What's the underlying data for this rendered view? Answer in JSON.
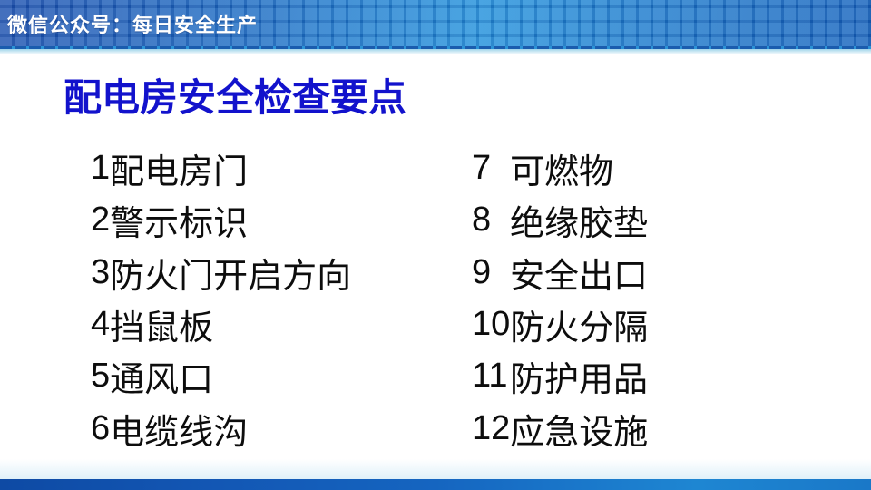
{
  "banner": {
    "text": "微信公众号：每日安全生产"
  },
  "slide": {
    "title": "配电房安全检查要点"
  },
  "checklist": {
    "left": [
      {
        "num": "1",
        "label": "配电房门"
      },
      {
        "num": "2",
        "label": "警示标识"
      },
      {
        "num": "3",
        "label": "防火门开启方向"
      },
      {
        "num": "4",
        "label": "挡鼠板"
      },
      {
        "num": "5",
        "label": "通风口"
      },
      {
        "num": "6",
        "label": "电缆线沟"
      }
    ],
    "right": [
      {
        "num": "7",
        "label": "可燃物"
      },
      {
        "num": "8",
        "label": "绝缘胶垫"
      },
      {
        "num": "9",
        "label": "安全出口"
      },
      {
        "num": "10",
        "label": "防火分隔"
      },
      {
        "num": "11",
        "label": "防护用品"
      },
      {
        "num": "12",
        "label": "应急设施"
      }
    ]
  },
  "colors": {
    "title_text": "#1212cc",
    "body_text": "#0d0d0d",
    "banner_blue_dark": "#1d52b0",
    "banner_blue_light": "#2492dc",
    "footer_blue_dark": "#0e4aa4",
    "footer_blue_light": "#1e86d2",
    "background": "#ffffff"
  }
}
